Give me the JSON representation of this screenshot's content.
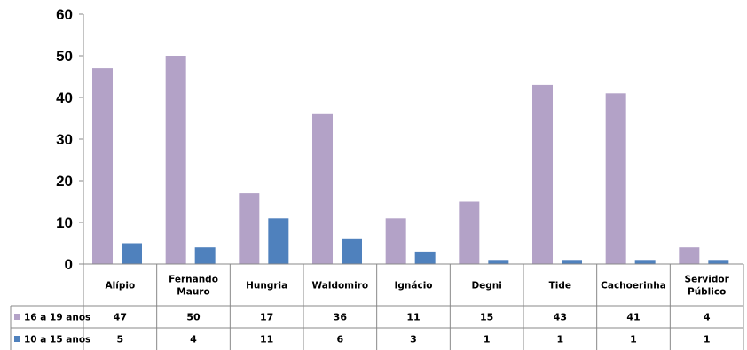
{
  "chart_data": {
    "type": "bar",
    "categories": [
      "Alípio",
      "Fernando Mauro",
      "Hungria",
      "Waldomiro",
      "Ignácio",
      "Degni",
      "Tide",
      "Cachoerinha",
      "Servidor Público"
    ],
    "category_lines": [
      [
        "Alípio"
      ],
      [
        "Fernando",
        "Mauro"
      ],
      [
        "Hungria"
      ],
      [
        "Waldomiro"
      ],
      [
        "Ignácio"
      ],
      [
        "Degni"
      ],
      [
        "Tide"
      ],
      [
        "Cachoerinha"
      ],
      [
        "Servidor",
        "Público"
      ]
    ],
    "series": [
      {
        "name": "16 a 19 anos",
        "color": "#b3a2c7",
        "values": [
          47,
          50,
          17,
          36,
          11,
          15,
          43,
          41,
          4
        ]
      },
      {
        "name": "10 a 15 anos",
        "color": "#4f81bd",
        "values": [
          5,
          4,
          11,
          6,
          3,
          1,
          1,
          1,
          1
        ]
      }
    ],
    "ylim": [
      0,
      60
    ],
    "yticks": [
      0,
      10,
      20,
      30,
      40,
      50,
      60
    ],
    "grid": false,
    "legend": "data-table",
    "title": "",
    "xlabel": "",
    "ylabel": ""
  }
}
